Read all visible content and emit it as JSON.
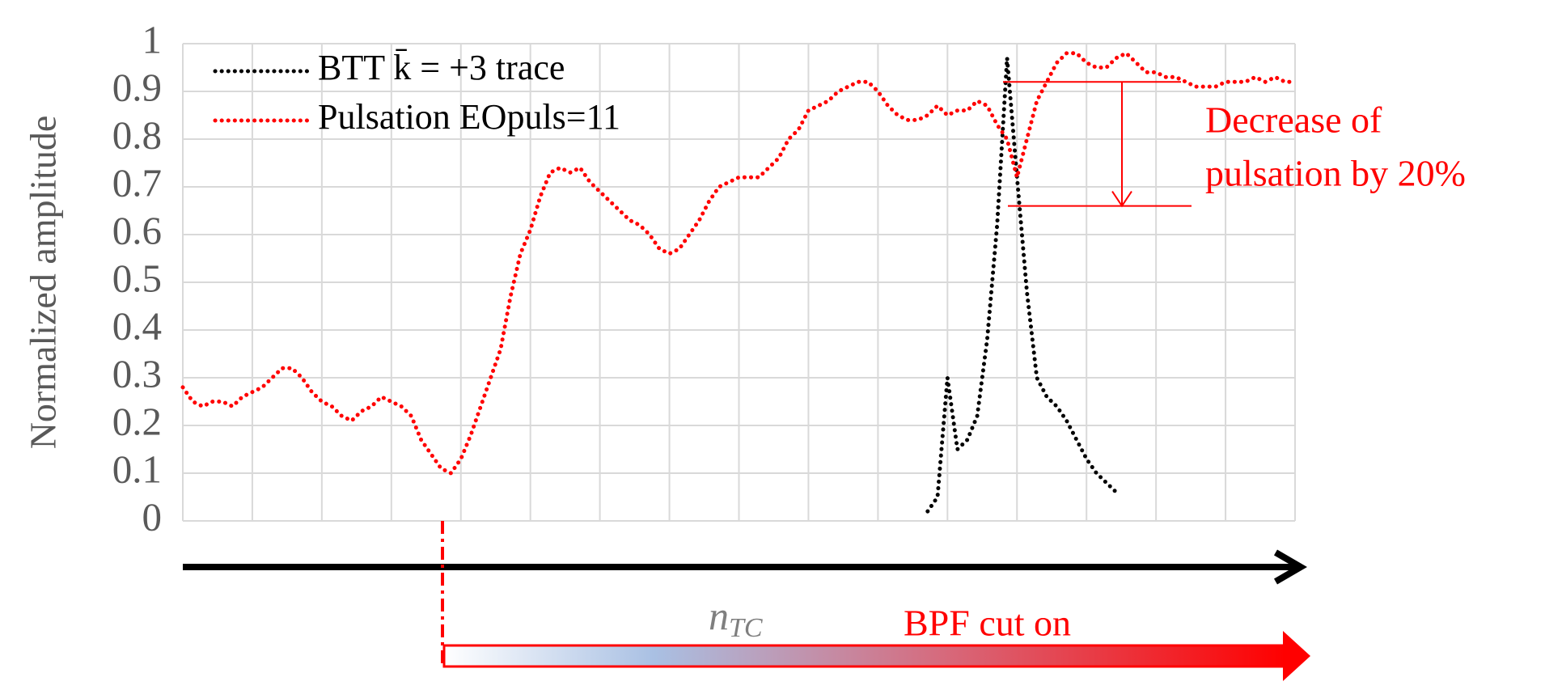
{
  "chart_data": {
    "type": "line",
    "ylabel": "Normalized amplitude",
    "ylim": [
      0,
      1
    ],
    "yticks": [
      0,
      0.1,
      0.2,
      0.3,
      0.4,
      0.5,
      0.6,
      0.7,
      0.8,
      0.9,
      1
    ],
    "grid": true,
    "legend": "top-left",
    "series": [
      {
        "name": "BTT k̄ = +3 trace",
        "color": "#000000",
        "values": [
          null,
          null,
          null,
          null,
          null,
          null,
          null,
          null,
          null,
          null,
          null,
          null,
          null,
          null,
          null,
          null,
          null,
          null,
          null,
          null,
          null,
          null,
          null,
          null,
          null,
          null,
          null,
          null,
          null,
          null,
          null,
          null,
          null,
          null,
          null,
          null,
          null,
          null,
          null,
          null,
          null,
          null,
          null,
          null,
          null,
          null,
          null,
          null,
          null,
          null,
          null,
          null,
          null,
          null,
          null,
          null,
          null,
          null,
          null,
          null,
          null,
          null,
          null,
          null,
          null,
          null,
          null,
          null,
          null,
          null,
          null,
          null,
          null,
          null,
          null,
          0.02,
          0.05,
          0.3,
          0.15,
          0.17,
          0.22,
          0.38,
          0.62,
          0.97,
          0.72,
          0.48,
          0.3,
          0.26,
          0.24,
          0.21,
          0.17,
          0.13,
          0.1,
          0.08,
          0.06,
          null,
          null,
          null,
          null,
          null,
          null,
          null,
          null,
          null,
          null,
          null,
          null,
          null,
          null,
          null,
          null,
          null,
          null
        ]
      },
      {
        "name": "Pulsation EOpuls=11",
        "color": "#ff0000",
        "values": [
          0.28,
          0.25,
          0.24,
          0.25,
          0.25,
          0.24,
          0.26,
          0.27,
          0.28,
          0.3,
          0.32,
          0.32,
          0.3,
          0.27,
          0.25,
          0.24,
          0.22,
          0.21,
          0.23,
          0.24,
          0.26,
          0.25,
          0.24,
          0.22,
          0.17,
          0.14,
          0.11,
          0.1,
          0.13,
          0.18,
          0.24,
          0.3,
          0.36,
          0.47,
          0.56,
          0.61,
          0.68,
          0.73,
          0.74,
          0.73,
          0.74,
          0.71,
          0.69,
          0.67,
          0.65,
          0.63,
          0.62,
          0.6,
          0.57,
          0.56,
          0.57,
          0.6,
          0.63,
          0.67,
          0.7,
          0.71,
          0.72,
          0.72,
          0.72,
          0.74,
          0.76,
          0.8,
          0.82,
          0.86,
          0.87,
          0.88,
          0.9,
          0.91,
          0.92,
          0.92,
          0.9,
          0.87,
          0.85,
          0.84,
          0.84,
          0.85,
          0.87,
          0.85,
          0.86,
          0.86,
          0.88,
          0.87,
          0.83,
          0.8,
          0.72,
          0.8,
          0.88,
          0.92,
          0.96,
          0.98,
          0.98,
          0.96,
          0.95,
          0.95,
          0.97,
          0.98,
          0.96,
          0.94,
          0.94,
          0.93,
          0.93,
          0.92,
          0.91,
          0.91,
          0.91,
          0.92,
          0.92,
          0.92,
          0.93,
          0.92,
          0.93,
          0.92,
          0.92
        ]
      }
    ],
    "annotation": {
      "text": [
        "Decrease of",
        "pulsation by 20%"
      ],
      "from": 0.92,
      "to": 0.66
    },
    "axis_note": {
      "main": "n",
      "sub": "TC"
    },
    "filter_note": "BPF cut on"
  }
}
